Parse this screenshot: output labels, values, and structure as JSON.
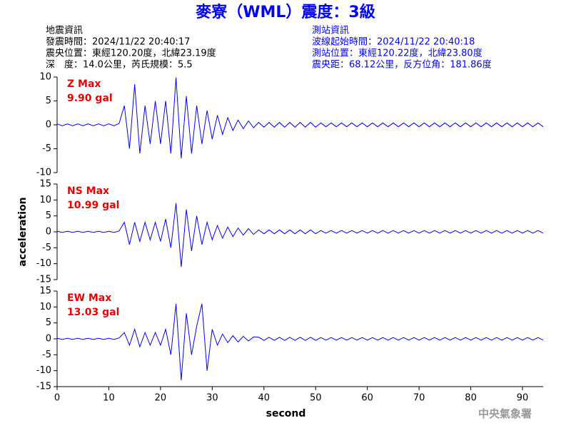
{
  "header": {
    "title": "麥寮（WML）震度：3級",
    "left": [
      "地震資訊",
      "發震時間：2024/11/22 20:40:17",
      "震央位置：東經120.20度，北緯23.19度",
      "深　度：14.0公里，芮氏規模：5.5"
    ],
    "right": [
      "測站資訊",
      "波線起始時間：2024/11/22 20:40:18",
      "測站位置：東經120.22度，北緯23.80度",
      "震央距：68.12公里，反方位角：181.86度"
    ]
  },
  "footer": {
    "watermark": "中央氣象署"
  },
  "chart_data": [
    {
      "type": "line",
      "annotation": [
        "Z Max",
        "9.90 gal"
      ],
      "color": "#0000ff",
      "x": [
        0,
        1,
        2,
        3,
        4,
        5,
        6,
        7,
        8,
        9,
        10,
        11,
        12,
        13,
        14,
        15,
        16,
        17,
        18,
        19,
        20,
        21,
        22,
        23,
        24,
        25,
        26,
        27,
        28,
        29,
        30,
        31,
        32,
        33,
        34,
        35,
        36,
        37,
        38,
        39,
        40,
        41,
        42,
        43,
        44,
        45,
        46,
        47,
        48,
        49,
        50,
        51,
        52,
        53,
        54,
        55,
        56,
        57,
        58,
        59,
        60,
        61,
        62,
        63,
        64,
        65,
        66,
        67,
        68,
        69,
        70,
        71,
        72,
        73,
        74,
        75,
        76,
        77,
        78,
        79,
        80,
        81,
        82,
        83,
        84,
        85,
        86,
        87,
        88,
        89,
        90,
        91,
        92,
        93,
        94
      ],
      "values": [
        0.2,
        -0.2,
        0.2,
        -0.2,
        0.2,
        -0.2,
        0.2,
        -0.2,
        0.2,
        -0.2,
        0.2,
        -0.2,
        0.3,
        4,
        -5,
        8.5,
        -6,
        4,
        -4,
        5,
        -4,
        5,
        -6,
        9.9,
        -7,
        6,
        -6,
        4,
        -4,
        3,
        -3,
        2,
        -2,
        1.5,
        -1.2,
        1,
        -0.8,
        0.8,
        -0.6,
        0.5,
        -0.5,
        0.5,
        -0.5,
        0.5,
        -0.5,
        0.5,
        -0.5,
        0.5,
        -0.5,
        0.5,
        -0.5,
        0.4,
        -0.4,
        0.4,
        -0.4,
        0.4,
        -0.4,
        0.4,
        -0.4,
        0.4,
        -0.4,
        0.4,
        -0.4,
        0.4,
        -0.4,
        0.4,
        -0.4,
        0.4,
        -0.4,
        0.4,
        -0.4,
        0.4,
        -0.4,
        0.4,
        -0.4,
        0.4,
        -0.4,
        0.4,
        -0.4,
        0.4,
        -0.4,
        0.4,
        -0.4,
        0.4,
        -0.4,
        0.4,
        -0.4,
        0.4,
        -0.4,
        0.4,
        -0.4,
        0.4,
        -0.4,
        0.4,
        -0.4
      ],
      "xlim": [
        0,
        94
      ],
      "ylim": [
        -10,
        10
      ],
      "yticks": [
        -10,
        -5,
        0,
        5,
        10
      ]
    },
    {
      "type": "line",
      "annotation": [
        "NS Max",
        "10.99 gal"
      ],
      "color": "#0000ff",
      "ylabel": "acceleration",
      "x": [
        0,
        1,
        2,
        3,
        4,
        5,
        6,
        7,
        8,
        9,
        10,
        11,
        12,
        13,
        14,
        15,
        16,
        17,
        18,
        19,
        20,
        21,
        22,
        23,
        24,
        25,
        26,
        27,
        28,
        29,
        30,
        31,
        32,
        33,
        34,
        35,
        36,
        37,
        38,
        39,
        40,
        41,
        42,
        43,
        44,
        45,
        46,
        47,
        48,
        49,
        50,
        51,
        52,
        53,
        54,
        55,
        56,
        57,
        58,
        59,
        60,
        61,
        62,
        63,
        64,
        65,
        66,
        67,
        68,
        69,
        70,
        71,
        72,
        73,
        74,
        75,
        76,
        77,
        78,
        79,
        80,
        81,
        82,
        83,
        84,
        85,
        86,
        87,
        88,
        89,
        90,
        91,
        92,
        93,
        94
      ],
      "values": [
        0.2,
        -0.2,
        0.2,
        -0.2,
        0.2,
        -0.2,
        0.2,
        -0.2,
        0.2,
        -0.2,
        0.2,
        -0.2,
        0.3,
        3,
        -4,
        3,
        -3,
        3,
        -2.5,
        3,
        -3,
        4,
        -5,
        9,
        -11,
        7,
        -6,
        5,
        -4,
        3,
        -2.5,
        2,
        -2,
        1.5,
        -1.5,
        1.2,
        -1,
        1,
        -0.8,
        0.6,
        -0.6,
        0.6,
        -0.6,
        0.6,
        -0.6,
        0.6,
        -0.6,
        0.6,
        -0.6,
        0.6,
        -0.6,
        0.4,
        -0.4,
        0.4,
        -0.4,
        0.4,
        -0.4,
        0.4,
        -0.4,
        0.4,
        -0.4,
        0.4,
        -0.4,
        0.4,
        -0.4,
        0.4,
        -0.4,
        0.4,
        -0.4,
        0.4,
        -0.4,
        0.4,
        -0.4,
        0.4,
        -0.4,
        0.4,
        -0.4,
        0.4,
        -0.4,
        0.4,
        -0.4,
        0.4,
        -0.4,
        0.4,
        -0.4,
        0.4,
        -0.4,
        0.4,
        -0.4,
        0.4,
        -0.4,
        0.4,
        -0.4,
        0.4,
        -0.4
      ],
      "xlim": [
        0,
        94
      ],
      "ylim": [
        -15,
        15
      ],
      "yticks": [
        -15,
        -10,
        -5,
        0,
        5,
        10,
        15
      ]
    },
    {
      "type": "line",
      "annotation": [
        "EW Max",
        "13.03 gal"
      ],
      "color": "#0000ff",
      "xlabel": "second",
      "x": [
        0,
        1,
        2,
        3,
        4,
        5,
        6,
        7,
        8,
        9,
        10,
        11,
        12,
        13,
        14,
        15,
        16,
        17,
        18,
        19,
        20,
        21,
        22,
        23,
        24,
        25,
        26,
        27,
        28,
        29,
        30,
        31,
        32,
        33,
        34,
        35,
        36,
        37,
        38,
        39,
        40,
        41,
        42,
        43,
        44,
        45,
        46,
        47,
        48,
        49,
        50,
        51,
        52,
        53,
        54,
        55,
        56,
        57,
        58,
        59,
        60,
        61,
        62,
        63,
        64,
        65,
        66,
        67,
        68,
        69,
        70,
        71,
        72,
        73,
        74,
        75,
        76,
        77,
        78,
        79,
        80,
        81,
        82,
        83,
        84,
        85,
        86,
        87,
        88,
        89,
        90,
        91,
        92,
        93,
        94
      ],
      "values": [
        0.2,
        -0.2,
        0.2,
        -0.2,
        0.2,
        -0.2,
        0.2,
        -0.2,
        0.2,
        -0.2,
        0.2,
        -0.2,
        0.3,
        2,
        -2,
        3,
        -2.5,
        2,
        -2,
        2,
        -2,
        3,
        -5,
        11,
        -13,
        8,
        -5,
        4,
        11,
        -10,
        3,
        -2,
        1.5,
        -1.2,
        1,
        -1,
        0.8,
        -0.7,
        0.6,
        0.5,
        -0.5,
        0.5,
        -0.5,
        0.5,
        -0.5,
        0.5,
        -0.5,
        0.5,
        -0.5,
        0.5,
        -0.5,
        0.4,
        -0.4,
        0.4,
        -0.4,
        0.4,
        -0.4,
        0.4,
        -0.4,
        0.4,
        -0.4,
        0.4,
        -0.4,
        0.4,
        -0.4,
        0.4,
        -0.4,
        0.4,
        -0.4,
        0.4,
        -0.4,
        0.4,
        -0.4,
        0.4,
        -0.4,
        0.4,
        -0.4,
        0.4,
        -0.4,
        0.4,
        -0.4,
        0.4,
        -0.4,
        0.4,
        -0.4,
        0.4,
        -0.4,
        0.4,
        -0.4,
        0.4,
        -0.4,
        0.4,
        -0.4,
        0.4,
        -0.4
      ],
      "xlim": [
        0,
        94
      ],
      "ylim": [
        -15,
        15
      ],
      "yticks": [
        -15,
        -10,
        -5,
        0,
        5,
        10,
        15
      ],
      "xticks": [
        0,
        10,
        20,
        30,
        40,
        50,
        60,
        70,
        80,
        90
      ]
    }
  ]
}
